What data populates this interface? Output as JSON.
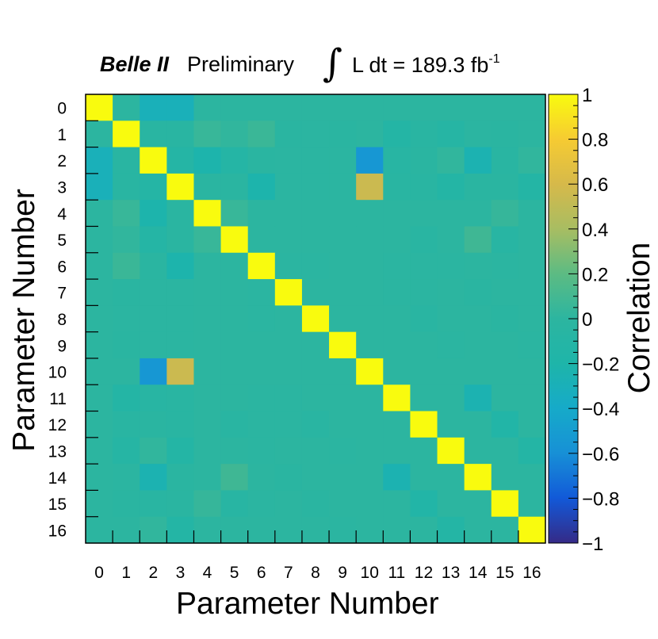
{
  "title": {
    "experiment": "Belle II",
    "status": "Preliminary",
    "integral_symbol": "∫",
    "lumi_prefix": "L dt = 189.3 fb",
    "lumi_exponent": "-1"
  },
  "chart_data": {
    "type": "heatmap",
    "xlabel": "Parameter Number",
    "ylabel": "Parameter Number",
    "zlabel": "Correlation",
    "x_categories": [
      "0",
      "1",
      "2",
      "3",
      "4",
      "5",
      "6",
      "7",
      "8",
      "9",
      "10",
      "11",
      "12",
      "13",
      "14",
      "15",
      "16"
    ],
    "y_categories": [
      "0",
      "1",
      "2",
      "3",
      "4",
      "5",
      "6",
      "7",
      "8",
      "9",
      "10",
      "11",
      "12",
      "13",
      "14",
      "15",
      "16"
    ],
    "zlim": [
      -1,
      1
    ],
    "colorbar_ticks": [
      "1",
      "0.8",
      "0.6",
      "0.4",
      "0.2",
      "0",
      "−0.2",
      "−0.4",
      "−0.6",
      "−0.8",
      "−1"
    ],
    "matrix": [
      [
        1.0,
        0.0,
        -0.3,
        -0.3,
        0.0,
        0.0,
        0.0,
        0.0,
        0.0,
        0.0,
        0.0,
        0.0,
        0.0,
        0.0,
        0.0,
        0.0,
        0.0
      ],
      [
        0.0,
        1.0,
        -0.05,
        -0.05,
        0.05,
        0.02,
        0.06,
        -0.03,
        -0.02,
        -0.03,
        0.0,
        -0.12,
        -0.04,
        -0.08,
        -0.02,
        -0.03,
        0.0
      ],
      [
        -0.3,
        -0.05,
        1.0,
        -0.1,
        -0.22,
        -0.1,
        -0.03,
        -0.02,
        -0.02,
        -0.02,
        -0.55,
        -0.06,
        -0.03,
        0.02,
        -0.25,
        -0.05,
        0.02
      ],
      [
        -0.3,
        -0.05,
        -0.1,
        1.0,
        -0.03,
        -0.03,
        -0.22,
        -0.02,
        -0.02,
        -0.02,
        0.55,
        -0.05,
        -0.04,
        -0.12,
        -0.03,
        -0.03,
        -0.12
      ],
      [
        0.0,
        0.05,
        -0.22,
        -0.03,
        1.0,
        0.05,
        0.0,
        0.0,
        0.0,
        0.0,
        0.0,
        0.0,
        0.0,
        0.0,
        0.0,
        0.04,
        0.0
      ],
      [
        0.0,
        0.02,
        -0.1,
        -0.03,
        0.05,
        1.0,
        0.0,
        0.0,
        0.0,
        0.0,
        0.0,
        0.0,
        -0.05,
        0.0,
        0.08,
        -0.06,
        0.0
      ],
      [
        0.0,
        0.06,
        -0.03,
        -0.22,
        0.0,
        0.0,
        1.0,
        -0.02,
        -0.02,
        0.0,
        0.0,
        -0.02,
        -0.02,
        -0.02,
        0.0,
        -0.02,
        0.0
      ],
      [
        0.0,
        -0.03,
        -0.02,
        -0.02,
        0.0,
        0.0,
        -0.02,
        1.0,
        0.0,
        0.0,
        0.0,
        -0.02,
        -0.02,
        0.0,
        -0.03,
        0.0,
        0.0
      ],
      [
        0.0,
        -0.02,
        -0.02,
        -0.02,
        0.0,
        0.0,
        -0.02,
        0.0,
        1.0,
        0.0,
        0.0,
        0.0,
        -0.05,
        0.0,
        0.0,
        -0.03,
        0.0
      ],
      [
        0.0,
        -0.03,
        -0.02,
        -0.02,
        0.0,
        0.0,
        0.0,
        0.0,
        0.0,
        1.0,
        0.0,
        0.0,
        0.0,
        -0.02,
        0.0,
        0.0,
        -0.02
      ],
      [
        0.0,
        0.0,
        -0.55,
        0.55,
        0.0,
        0.0,
        0.0,
        0.0,
        0.0,
        0.0,
        1.0,
        0.0,
        0.0,
        0.0,
        0.0,
        0.0,
        0.0
      ],
      [
        0.0,
        -0.12,
        -0.06,
        -0.05,
        0.0,
        0.0,
        -0.02,
        -0.02,
        0.0,
        0.0,
        0.0,
        1.0,
        0.0,
        0.0,
        -0.25,
        0.0,
        0.0
      ],
      [
        0.0,
        -0.04,
        -0.03,
        -0.04,
        0.0,
        -0.05,
        -0.02,
        -0.02,
        -0.05,
        0.0,
        0.0,
        0.0,
        1.0,
        0.0,
        0.0,
        -0.15,
        0.0
      ],
      [
        0.0,
        -0.08,
        0.02,
        -0.12,
        0.0,
        0.0,
        -0.02,
        0.0,
        0.0,
        -0.02,
        0.0,
        0.0,
        0.0,
        1.0,
        0.0,
        0.0,
        -0.12
      ],
      [
        0.0,
        -0.02,
        -0.25,
        -0.03,
        0.0,
        0.08,
        0.0,
        -0.03,
        0.0,
        0.0,
        0.0,
        -0.25,
        0.0,
        0.0,
        1.0,
        0.0,
        0.0
      ],
      [
        0.0,
        -0.03,
        -0.05,
        -0.03,
        0.04,
        -0.06,
        -0.02,
        0.0,
        -0.03,
        0.0,
        0.0,
        0.0,
        -0.15,
        0.0,
        0.0,
        1.0,
        0.0
      ],
      [
        0.0,
        0.0,
        0.02,
        -0.12,
        0.0,
        0.0,
        0.0,
        0.0,
        0.0,
        -0.02,
        0.0,
        0.0,
        0.0,
        -0.12,
        0.0,
        0.0,
        1.0
      ]
    ],
    "colorscale": [
      "#352a87",
      "#1259d8",
      "#1790d6",
      "#16aac9",
      "#1eb5a9",
      "#2cb5a0",
      "#5cbb83",
      "#a8bd62",
      "#d6b94a",
      "#f6cb32",
      "#f9fb0e"
    ],
    "grid": false,
    "colorbar": "right"
  }
}
